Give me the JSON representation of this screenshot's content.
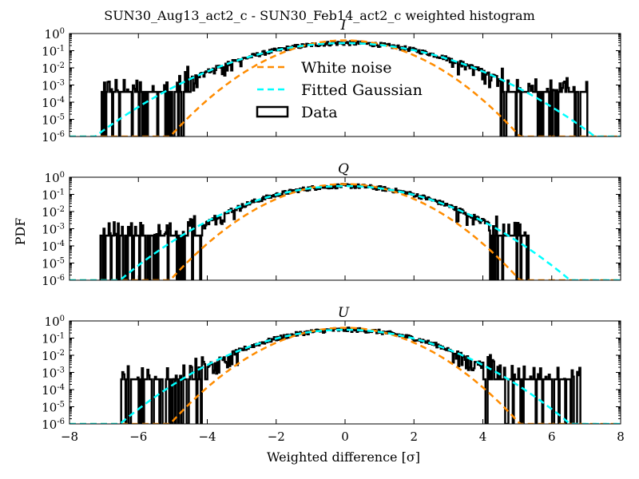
{
  "figure": {
    "suptitle": "SUN30_Aug13_act2_c - SUN30_Feb14_act2_c weighted histogram",
    "ylabel": "PDF",
    "xlabel": "Weighted difference [σ]"
  },
  "colors": {
    "white_noise": "#ff8c00",
    "fitted_gaussian": "#00ffff",
    "data": "#000000"
  },
  "legend": {
    "placement": "center (top panel)",
    "entries": [
      {
        "label": "White noise",
        "style": "dashed",
        "color": "#ff8c00"
      },
      {
        "label": "Fitted Gaussian",
        "style": "dashed",
        "color": "#00ffff"
      },
      {
        "label": "Data",
        "style": "box",
        "color": "#000000"
      }
    ]
  },
  "x_ticks": [
    "−8",
    "−6",
    "−4",
    "−2",
    "0",
    "2",
    "4",
    "6",
    "8"
  ],
  "y_ticks": [
    {
      "base": "10",
      "exp": "0"
    },
    {
      "base": "10",
      "exp": "-1"
    },
    {
      "base": "10",
      "exp": "-2"
    },
    {
      "base": "10",
      "exp": "-3"
    },
    {
      "base": "10",
      "exp": "-4"
    },
    {
      "base": "10",
      "exp": "-5"
    },
    {
      "base": "10",
      "exp": "-6"
    }
  ],
  "chart_data": [
    {
      "type": "line",
      "title": "I",
      "xlim": [
        -8,
        8
      ],
      "ylim": [
        1e-06,
        1
      ],
      "yscale": "log",
      "series": [
        {
          "name": "White noise",
          "kind": "gaussian",
          "sigma": 1.0
        },
        {
          "name": "Fitted Gaussian",
          "kind": "gaussian",
          "sigma": 1.45
        },
        {
          "name": "Data",
          "kind": "histogram",
          "x_range": [
            -7.1,
            7.0
          ],
          "floor_pdf": 0.0004,
          "noisy_tail_start": 4.5
        }
      ]
    },
    {
      "type": "line",
      "title": "Q",
      "xlim": [
        -8,
        8
      ],
      "ylim": [
        1e-06,
        1
      ],
      "yscale": "log",
      "series": [
        {
          "name": "White noise",
          "kind": "gaussian",
          "sigma": 1.0
        },
        {
          "name": "Fitted Gaussian",
          "kind": "gaussian",
          "sigma": 1.3
        },
        {
          "name": "Data",
          "kind": "histogram",
          "x_range": [
            -7.1,
            5.3
          ],
          "floor_pdf": 0.0004,
          "noisy_tail_start": 4.2
        }
      ]
    },
    {
      "type": "line",
      "title": "U",
      "xlim": [
        -8,
        8
      ],
      "ylim": [
        1e-06,
        1
      ],
      "yscale": "log",
      "series": [
        {
          "name": "White noise",
          "kind": "gaussian",
          "sigma": 1.0
        },
        {
          "name": "Fitted Gaussian",
          "kind": "gaussian",
          "sigma": 1.3
        },
        {
          "name": "Data",
          "kind": "histogram",
          "x_range": [
            -6.5,
            6.8
          ],
          "floor_pdf": 0.0004,
          "noisy_tail_start": 4.0
        }
      ]
    }
  ]
}
